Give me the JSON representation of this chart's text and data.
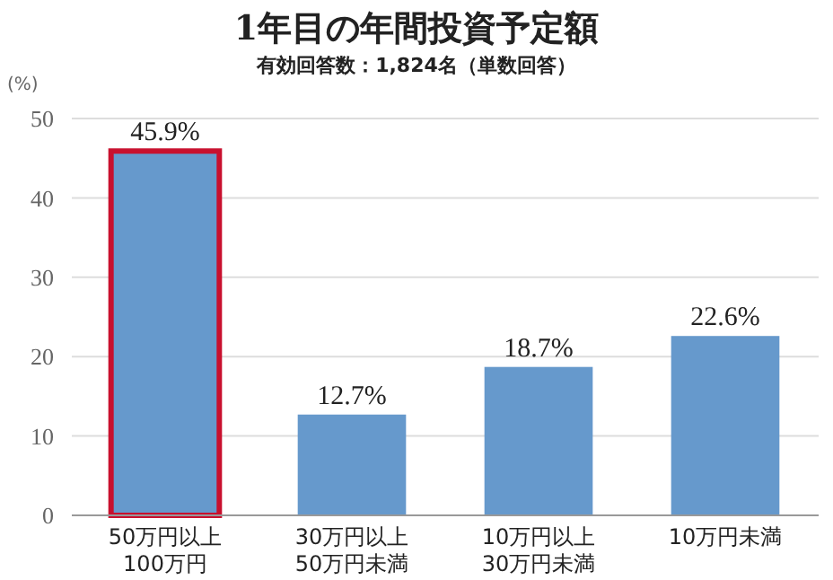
{
  "chart_data": {
    "type": "bar",
    "title": "1年目の年間投資予定額",
    "subtitle": "有効回答数：1,824名（単数回答）",
    "ylabel": "(%)",
    "categories": [
      "50万円以上\n100万円",
      "30万円以上\n50万円未満",
      "10万円以上\n30万円未満",
      "10万円未満"
    ],
    "values": [
      45.9,
      12.7,
      18.7,
      22.6
    ],
    "color": "#6699cc",
    "value_labels": [
      "45.9%",
      "12.7%",
      "18.7%",
      "22.6%"
    ],
    "ylim": [
      0,
      50
    ],
    "yticks": [
      0,
      10,
      20,
      30,
      40,
      50
    ],
    "grid": "y"
  }
}
